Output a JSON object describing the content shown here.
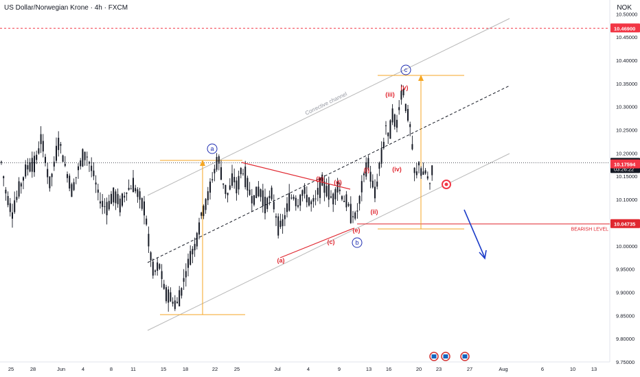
{
  "header": {
    "title": "US Dollar/Norwegian Krone · 4h · FXCM",
    "currency": "NOK"
  },
  "chart_data": {
    "type": "candlestick",
    "ylim": [
      9.75,
      10.53
    ],
    "y_ticks": [
      "10.50000",
      "10.45000",
      "10.40000",
      "10.35000",
      "10.30000",
      "10.25000",
      "10.20000",
      "10.15000",
      "10.10000",
      "10.05000",
      "10.00000",
      "9.95000",
      "9.90000",
      "9.85000",
      "9.80000",
      "9.75000"
    ],
    "x_ticks": [
      "25",
      "28",
      "Jun",
      "4",
      "8",
      "11",
      "15",
      "18",
      "22",
      "25",
      "Jul",
      "4",
      "9",
      "13",
      "16",
      "20",
      "23",
      "27",
      "Aug",
      "6",
      "10",
      "13"
    ],
    "price_path": [
      [
        0,
        10.2
      ],
      [
        8,
        10.12
      ],
      [
        18,
        10.07
      ],
      [
        30,
        10.13
      ],
      [
        40,
        10.17
      ],
      [
        52,
        10.18
      ],
      [
        60,
        10.23
      ],
      [
        66,
        10.19
      ],
      [
        72,
        10.13
      ],
      [
        80,
        10.18
      ],
      [
        86,
        10.23
      ],
      [
        95,
        10.17
      ],
      [
        105,
        10.12
      ],
      [
        115,
        10.17
      ],
      [
        125,
        10.2
      ],
      [
        135,
        10.16
      ],
      [
        145,
        10.1
      ],
      [
        155,
        10.08
      ],
      [
        165,
        10.11
      ],
      [
        175,
        10.09
      ],
      [
        185,
        10.12
      ],
      [
        195,
        10.13
      ],
      [
        205,
        10.1
      ],
      [
        212,
        10.07
      ],
      [
        218,
        9.99
      ],
      [
        224,
        9.94
      ],
      [
        232,
        9.96
      ],
      [
        240,
        9.9
      ],
      [
        248,
        9.89
      ],
      [
        256,
        9.87
      ],
      [
        262,
        9.89
      ],
      [
        270,
        9.94
      ],
      [
        278,
        9.98
      ],
      [
        286,
        10.01
      ],
      [
        294,
        10.07
      ],
      [
        302,
        10.1
      ],
      [
        310,
        10.15
      ],
      [
        318,
        10.19
      ],
      [
        324,
        10.14
      ],
      [
        332,
        10.11
      ],
      [
        340,
        10.15
      ],
      [
        346,
        10.12
      ],
      [
        352,
        10.17
      ],
      [
        360,
        10.13
      ],
      [
        368,
        10.1
      ],
      [
        378,
        10.12
      ],
      [
        386,
        10.09
      ],
      [
        396,
        10.11
      ],
      [
        404,
        10.05
      ],
      [
        410,
        10.04
      ],
      [
        418,
        10.08
      ],
      [
        426,
        10.11
      ],
      [
        434,
        10.09
      ],
      [
        442,
        10.12
      ],
      [
        452,
        10.09
      ],
      [
        460,
        10.1
      ],
      [
        468,
        10.14
      ],
      [
        476,
        10.12
      ],
      [
        484,
        10.1
      ],
      [
        492,
        10.13
      ],
      [
        500,
        10.1
      ],
      [
        506,
        10.09
      ],
      [
        512,
        10.07
      ],
      [
        518,
        10.06
      ],
      [
        524,
        10.1
      ],
      [
        530,
        10.15
      ],
      [
        536,
        10.18
      ],
      [
        541,
        10.14
      ],
      [
        547,
        10.11
      ],
      [
        552,
        10.17
      ],
      [
        558,
        10.21
      ],
      [
        562,
        10.26
      ],
      [
        566,
        10.23
      ],
      [
        572,
        10.29
      ],
      [
        577,
        10.25
      ],
      [
        582,
        10.31
      ],
      [
        587,
        10.34
      ],
      [
        592,
        10.29
      ],
      [
        597,
        10.26
      ],
      [
        601,
        10.2
      ],
      [
        605,
        10.14
      ],
      [
        610,
        10.18
      ],
      [
        615,
        10.15
      ],
      [
        620,
        10.16
      ],
      [
        626,
        10.13
      ],
      [
        631,
        10.18
      ]
    ],
    "last_price": "10.17929",
    "countdown": "03:26:22",
    "bid_price": "10.17594",
    "level_high": "10.46900",
    "level_bearish": "10.04735",
    "bearish_label": "BEARISH LEVEL",
    "channel_label": "Corrective channel",
    "wave_labels_major": [
      "a",
      "b",
      "c"
    ],
    "wave_labels_abc": [
      "(a)",
      "(b)",
      "(c)",
      "(d)",
      "(e)"
    ],
    "wave_labels_impulse": [
      "(i)",
      "(ii)",
      "(iii)",
      "(iv)",
      "(v)"
    ],
    "colors": {
      "candle": "#131722",
      "level_high": "#f23645",
      "level_bearish": "#e0262f",
      "wave_red": "#e0262f",
      "wave_blue": "#1c2bb0",
      "measure": "#f5a623",
      "channel": "#b8b8b8",
      "midline": "#131722",
      "arrow": "#1c3cc8",
      "price_tag": "#131722",
      "bid_tag": "#f23645"
    }
  }
}
